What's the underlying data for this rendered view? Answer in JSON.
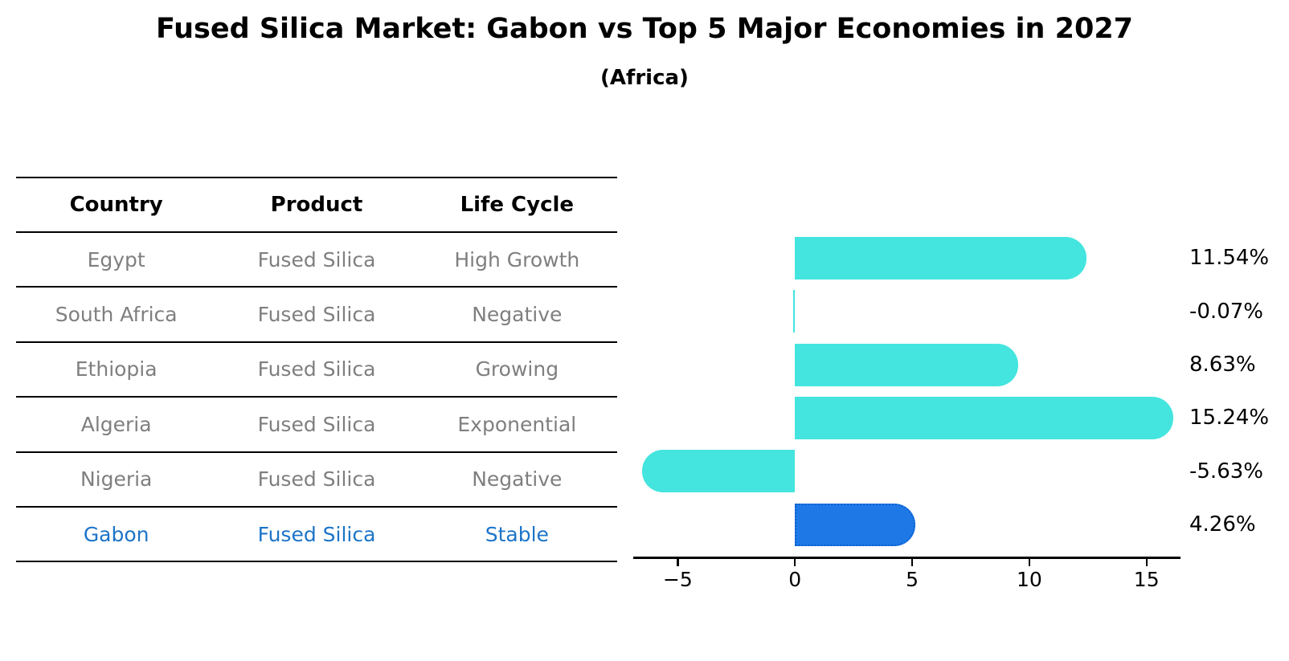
{
  "figure": {
    "title": "Fused Silica Market: Gabon vs Top 5 Major Economies in 2027",
    "subtitle": "(Africa)"
  },
  "table": {
    "columns": [
      "Country",
      "Product",
      "Life Cycle"
    ],
    "rows": [
      {
        "country": "Egypt",
        "product": "Fused Silica",
        "life_cycle": "High Growth"
      },
      {
        "country": "South Africa",
        "product": "Fused Silica",
        "life_cycle": "Negative"
      },
      {
        "country": "Ethiopia",
        "product": "Fused Silica",
        "life_cycle": "Growing"
      },
      {
        "country": "Algeria",
        "product": "Fused Silica",
        "life_cycle": "Exponential"
      },
      {
        "country": "Nigeria",
        "product": "Fused Silica",
        "life_cycle": "Negative"
      },
      {
        "country": "Gabon",
        "product": "Fused Silica",
        "life_cycle": "Stable"
      }
    ],
    "text_color": "#7f7f7f",
    "highlight_row_index": 5,
    "highlight_text_color": "#1c74c8"
  },
  "chart_data": {
    "type": "bar",
    "orientation": "horizontal",
    "title": "Fused Silica Market: Gabon vs Top 5 Major Economies in 2027",
    "subtitle": "(Africa)",
    "categories": [
      "Egypt",
      "South Africa",
      "Ethiopia",
      "Algeria",
      "Nigeria",
      "Gabon"
    ],
    "values": [
      11.54,
      -0.07,
      8.63,
      15.24,
      -5.63,
      4.26
    ],
    "value_labels": [
      "11.54%",
      "-0.07%",
      "8.63%",
      "15.24%",
      "-5.63%",
      "4.26%"
    ],
    "xlim": [
      -6.9,
      16.45
    ],
    "xtick_values": [
      -5,
      0,
      5,
      10,
      15
    ],
    "xtick_labels": [
      "−5",
      "0",
      "5",
      "10",
      "15"
    ],
    "grid": false,
    "legend": false,
    "bar_color": "#44e5de",
    "highlight_index": 5,
    "highlight_bar_color": "#1e79e6",
    "highlight_bar_border_color": "#0d5fd0",
    "axis_color": "#000000"
  }
}
